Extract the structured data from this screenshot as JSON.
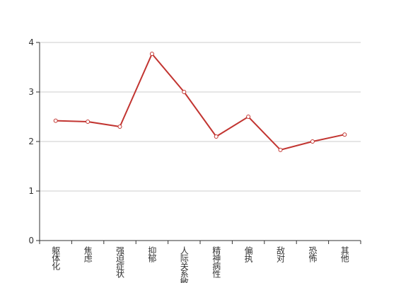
{
  "chart_data": {
    "type": "line",
    "categories": [
      "躯体化",
      "焦虑",
      "强迫症状",
      "抑郁",
      "人际关系敏感",
      "精神病性",
      "偏执",
      "敌对",
      "恐怖",
      "其他"
    ],
    "series": [
      {
        "color": "#c23531",
        "values": [
          2.42,
          2.4,
          2.3,
          3.77,
          3.0,
          2.1,
          2.5,
          1.83,
          2.0,
          2.14
        ]
      }
    ],
    "ylim": [
      0,
      4
    ],
    "yticks": [
      0,
      1,
      2,
      3,
      4
    ],
    "grid": true
  }
}
